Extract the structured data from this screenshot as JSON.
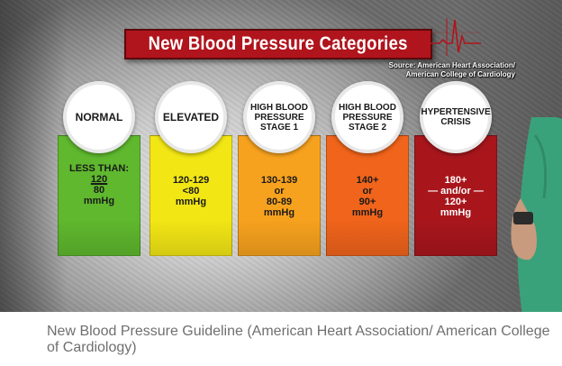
{
  "graphic": {
    "title": "New Blood Pressure Categories",
    "source_lines": [
      "Source: American Heart Association/",
      "American College of Cardiology"
    ],
    "categories": [
      {
        "name_lines": [
          "NORMAL"
        ],
        "color": "#5fb82e",
        "value_lines": [
          "LESS THAN:",
          "120",
          "80",
          "mmHg"
        ]
      },
      {
        "name_lines": [
          "ELEVATED"
        ],
        "color": "#f2e615",
        "value_lines": [
          "120-129",
          "<80",
          "mmHg"
        ]
      },
      {
        "name_lines": [
          "HIGH BLOOD",
          "PRESSURE",
          "STAGE 1"
        ],
        "color": "#f7a21e",
        "value_lines": [
          "130-139",
          "or",
          "80-89",
          "mmHg"
        ]
      },
      {
        "name_lines": [
          "HIGH BLOOD",
          "PRESSURE",
          "STAGE 2"
        ],
        "color": "#f0641b",
        "value_lines": [
          "140+",
          "or",
          "90+",
          "mmHg"
        ]
      },
      {
        "name_lines": [
          "HYPERTENSIVE",
          "CRISIS"
        ],
        "color": "#a8161c",
        "value_lines": [
          "180+",
          "— and/or —",
          "120+",
          "mmHg"
        ]
      }
    ]
  },
  "caption": "New Blood Pressure Guideline (American Heart Association/ American College of Cardiology)"
}
